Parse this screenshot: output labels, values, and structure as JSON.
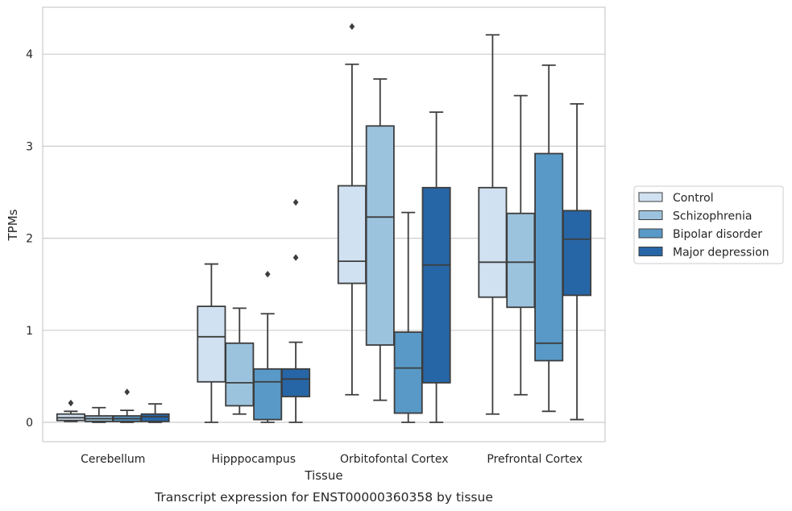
{
  "chart_data": {
    "type": "box",
    "title": "",
    "caption": "Transcript expression for ENST00000360358 by tissue",
    "xlabel": "Tissue",
    "ylabel": "TPMs",
    "ylim": [
      -0.2,
      4.5
    ],
    "yticks": [
      0,
      1,
      2,
      3,
      4
    ],
    "grid": "horizontal",
    "legend_position": "right",
    "categories": [
      "Cerebellum",
      "Hipppocampus",
      "Orbitofontal Cortex",
      "Prefrontal Cortex"
    ],
    "series": [
      {
        "name": "Control",
        "color": "#d0e1f1",
        "boxes": [
          {
            "whislo": 0.01,
            "q1": 0.02,
            "med": 0.05,
            "q3": 0.09,
            "whishi": 0.12,
            "fliers": [
              0.21
            ]
          },
          {
            "whislo": 0.0,
            "q1": 0.44,
            "med": 0.93,
            "q3": 1.26,
            "whishi": 1.72,
            "fliers": []
          },
          {
            "whislo": 0.3,
            "q1": 1.51,
            "med": 1.75,
            "q3": 2.57,
            "whishi": 3.89,
            "fliers": [
              4.3
            ]
          },
          {
            "whislo": 0.09,
            "q1": 1.36,
            "med": 1.74,
            "q3": 2.55,
            "whishi": 4.21,
            "fliers": []
          }
        ]
      },
      {
        "name": "Schizophrenia",
        "color": "#9cc3de",
        "boxes": [
          {
            "whislo": 0.0,
            "q1": 0.01,
            "med": 0.04,
            "q3": 0.07,
            "whishi": 0.16,
            "fliers": []
          },
          {
            "whislo": 0.09,
            "q1": 0.18,
            "med": 0.43,
            "q3": 0.86,
            "whishi": 1.24,
            "fliers": []
          },
          {
            "whislo": 0.24,
            "q1": 0.84,
            "med": 2.23,
            "q3": 3.22,
            "whishi": 3.73,
            "fliers": []
          },
          {
            "whislo": 0.3,
            "q1": 1.25,
            "med": 1.74,
            "q3": 2.27,
            "whishi": 3.55,
            "fliers": []
          }
        ]
      },
      {
        "name": "Bipolar disorder",
        "color": "#5899c7",
        "boxes": [
          {
            "whislo": 0.0,
            "q1": 0.01,
            "med": 0.04,
            "q3": 0.07,
            "whishi": 0.13,
            "fliers": [
              0.33
            ]
          },
          {
            "whislo": 0.0,
            "q1": 0.03,
            "med": 0.44,
            "q3": 0.58,
            "whishi": 1.18,
            "fliers": [
              1.61
            ]
          },
          {
            "whislo": 0.0,
            "q1": 0.1,
            "med": 0.59,
            "q3": 0.98,
            "whishi": 2.28,
            "fliers": []
          },
          {
            "whislo": 0.12,
            "q1": 0.67,
            "med": 0.86,
            "q3": 2.92,
            "whishi": 3.88,
            "fliers": []
          }
        ]
      },
      {
        "name": "Major depression",
        "color": "#2766a6",
        "boxes": [
          {
            "whislo": 0.0,
            "q1": 0.01,
            "med": 0.06,
            "q3": 0.09,
            "whishi": 0.2,
            "fliers": []
          },
          {
            "whislo": 0.0,
            "q1": 0.28,
            "med": 0.47,
            "q3": 0.58,
            "whishi": 0.87,
            "fliers": [
              1.79,
              2.39
            ]
          },
          {
            "whislo": 0.0,
            "q1": 0.43,
            "med": 1.71,
            "q3": 2.55,
            "whishi": 3.37,
            "fliers": []
          },
          {
            "whislo": 0.03,
            "q1": 1.38,
            "med": 1.99,
            "q3": 2.3,
            "whishi": 3.46,
            "fliers": []
          }
        ]
      }
    ]
  }
}
